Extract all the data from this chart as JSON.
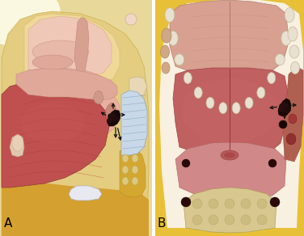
{
  "label_A": "A",
  "label_B": "B",
  "label_fontsize": 11,
  "bg_color": "#ffffff",
  "fig_width": 3.76,
  "fig_height": 2.92,
  "dpi": 100,
  "divider": 0.5
}
